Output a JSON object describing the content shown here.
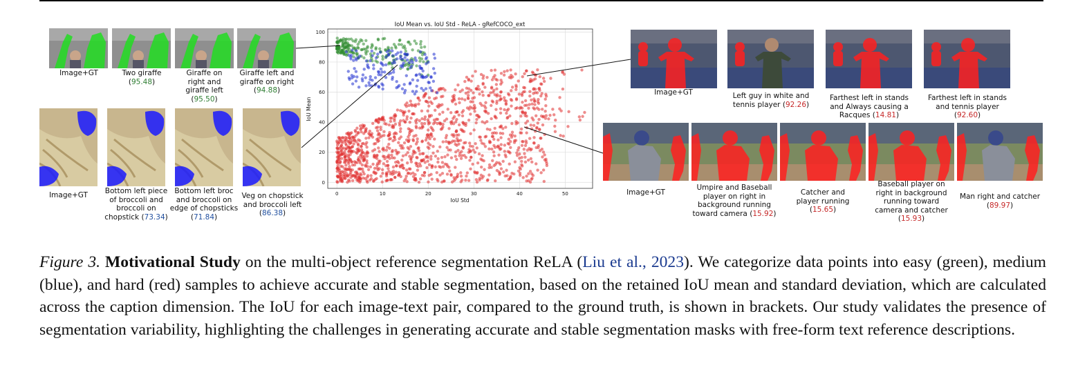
{
  "giraffe": {
    "captions": [
      {
        "text": "Image+GT",
        "score": ""
      },
      {
        "text": "Two giraffe",
        "score": "95.48"
      },
      {
        "text": "Giraffe on right and giraffe left",
        "score": "95.50"
      },
      {
        "text": "Giraffe left and giraffe on right",
        "score": "94.88"
      }
    ]
  },
  "broccoli": {
    "captions": [
      {
        "text": "Image+GT",
        "score": ""
      },
      {
        "text": "Bottom left piece of broccoli and broccoli on chopstick",
        "score": "73.34"
      },
      {
        "text": "Bottom left broc and broccoli on edge of chopsticks",
        "score": "71.84"
      },
      {
        "text": "Veg on chopstick and broccoli left",
        "score": "86.38"
      }
    ]
  },
  "tennis": {
    "captions": [
      {
        "text": "Image+GT",
        "score": ""
      },
      {
        "text": "Left guy in white and tennis player",
        "score": "92.26"
      },
      {
        "text": "Farthest left in stands and Always causing a Racques",
        "score": "14.81"
      },
      {
        "text": "Farthest left in stands and tennis player",
        "score": "92.60"
      }
    ]
  },
  "baseball": {
    "captions": [
      {
        "text": "Image+GT",
        "score": ""
      },
      {
        "text": "Umpire and Baseball player on right in background running toward camera",
        "score": "15.92"
      },
      {
        "text": "Catcher and player running",
        "score": "15.65"
      },
      {
        "text": "Baseball player on right in background running toward camera and catcher",
        "score": "15.93"
      },
      {
        "text": "Man right and catcher",
        "score": "89.97"
      }
    ]
  },
  "colors": {
    "easy": "#2e8b2e",
    "medium": "#1f2fd0",
    "hard": "#e03030",
    "mask_green": "#22dd22",
    "mask_blue": "#1a1aff",
    "mask_red": "#ff2020"
  },
  "chart_data": {
    "type": "scatter",
    "title": "IoU Mean vs. IoU Std - ReLA - gRefCOCO_ext",
    "xlabel": "IoU Std",
    "ylabel": "IoU Mean",
    "xlim": [
      -2,
      56
    ],
    "ylim": [
      -4,
      102
    ],
    "xticks": [
      0,
      10,
      20,
      30,
      40,
      50
    ],
    "yticks": [
      0,
      20,
      40,
      60,
      80,
      100
    ],
    "grid": true,
    "series": [
      {
        "group": "easy",
        "color": "#2e8b2e",
        "n": 220,
        "x_range": [
          0,
          20
        ],
        "y_range": [
          73,
          96
        ]
      },
      {
        "group": "medium",
        "color": "#1f2fd0",
        "n": 160,
        "x_range": [
          0,
          22
        ],
        "y_range": [
          60,
          90
        ]
      },
      {
        "group": "hard",
        "color": "#e03030",
        "n": 1300,
        "x_range": [
          0,
          56
        ],
        "y_range": [
          0,
          75
        ]
      }
    ]
  },
  "caption": {
    "label": "Figure 3.",
    "bold": "Motivational Study",
    "text1": " on the multi-object reference segmentation ReLA (",
    "link": "Liu et al., 2023",
    "text2": "). We categorize data points into easy (green), medium (blue), and hard (red) samples to achieve accurate and stable segmentation, based on the retained IoU mean and standard deviation, which are calculated across the caption dimension. The IoU for each image-text pair, compared to the ground truth, is shown in brackets. Our study validates the presence of segmentation variability, highlighting the challenges in generating accurate and stable segmentation masks with free-form text reference descriptions."
  }
}
